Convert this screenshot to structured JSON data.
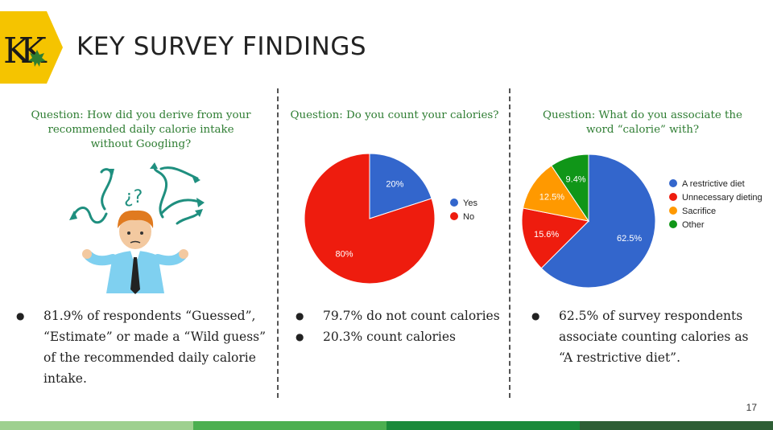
{
  "header": {
    "title": "KEY SURVEY FINDINGS",
    "logo_text": "KK",
    "logo_color": "#f5c400"
  },
  "page_number": "17",
  "footer_colors": [
    "#9ed08f",
    "#4caf50",
    "#1a8a3a",
    "#2e5e35"
  ],
  "panels": [
    {
      "question": [
        "Question: How did you derive from your",
        "recommended daily calorie intake",
        "without Googling?"
      ],
      "illustration": "confused-man-icon",
      "bullets": [
        "81.9% of respondents “Guessed”,",
        "“Estimate” or made a “Wild guess”",
        "of the recommended daily calorie",
        "intake."
      ]
    },
    {
      "question": [
        "Question: Do you count your calories?"
      ],
      "bullets": [
        "79.7% do not count calories",
        "20.3% count calories"
      ]
    },
    {
      "question": [
        "Question: What do you associate the",
        "word “calorie” with?"
      ],
      "bullets": [
        "62.5% of survey respondents",
        "associate counting calories as",
        "“A restrictive diet”."
      ]
    }
  ],
  "chart_data": [
    {
      "type": "pie",
      "categories": [
        "Yes",
        "No"
      ],
      "values": [
        20,
        80
      ],
      "labels": [
        "20%",
        "80%"
      ],
      "colors": [
        "#3366cc",
        "#ee1c0e"
      ],
      "legend": "right"
    },
    {
      "type": "pie",
      "categories": [
        "A restrictive diet",
        "Unnecessary dieting",
        "Sacrifice",
        "Other"
      ],
      "values": [
        62.5,
        15.6,
        12.5,
        9.4
      ],
      "labels": [
        "62.5%",
        "15.6%",
        "12.5%",
        "9.4%"
      ],
      "colors": [
        "#3366cc",
        "#ee1c0e",
        "#ff9900",
        "#109618"
      ],
      "legend": "right"
    }
  ]
}
